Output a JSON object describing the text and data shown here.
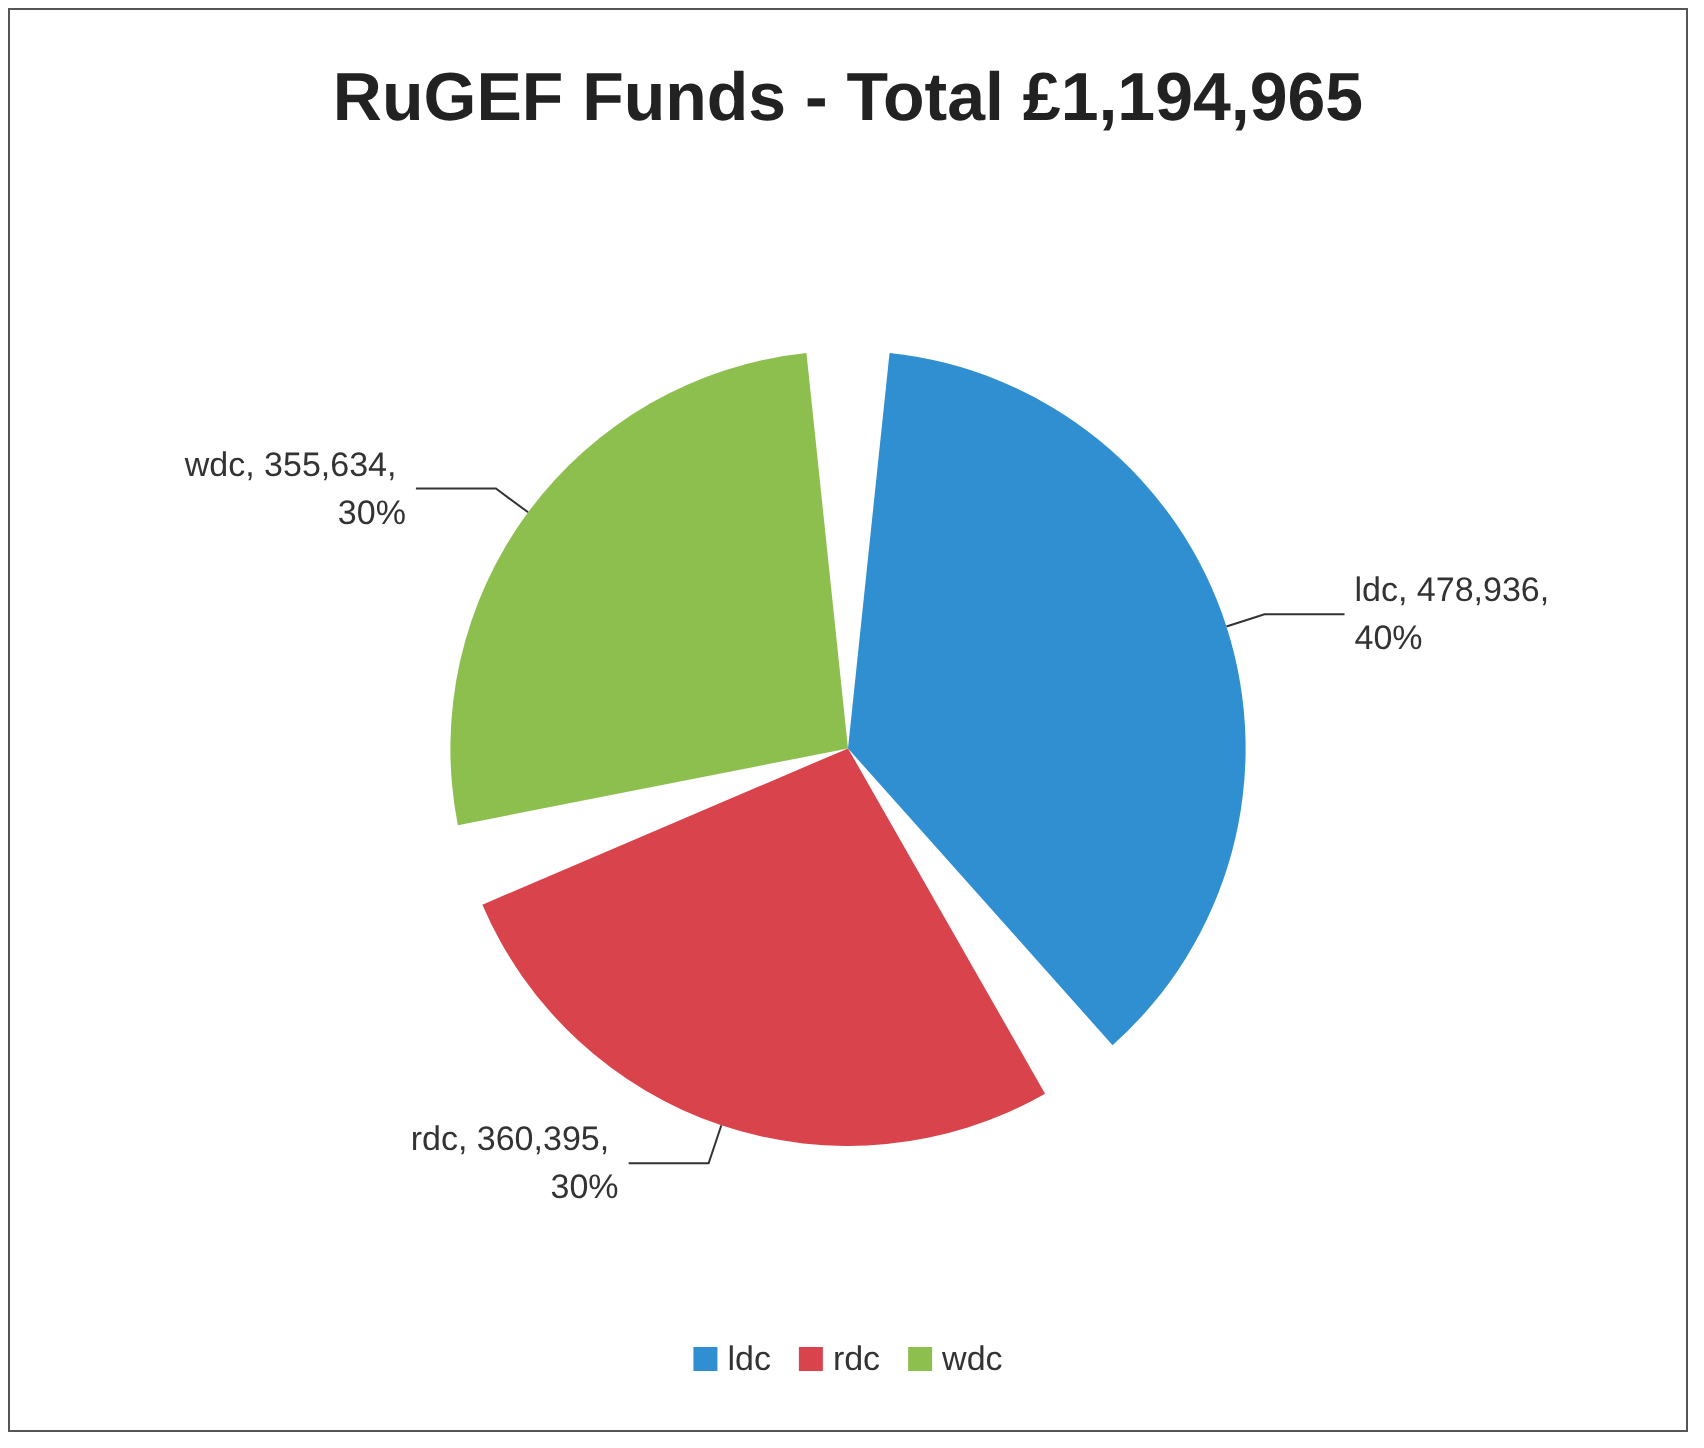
{
  "chart_data": {
    "type": "pie",
    "title": "RuGEF Funds - Total £1,194,965",
    "categories": [
      "ldc",
      "rdc",
      "wdc"
    ],
    "values": [
      478936,
      360395,
      355634
    ],
    "colors": [
      "#2f8fd1",
      "#d8434c",
      "#8dbf4f"
    ],
    "value_labels": [
      "ldc, 478,936, 40%",
      "rdc, 360,395, 30%",
      "wdc, 355,634, 30%"
    ],
    "legend": "bottom"
  }
}
